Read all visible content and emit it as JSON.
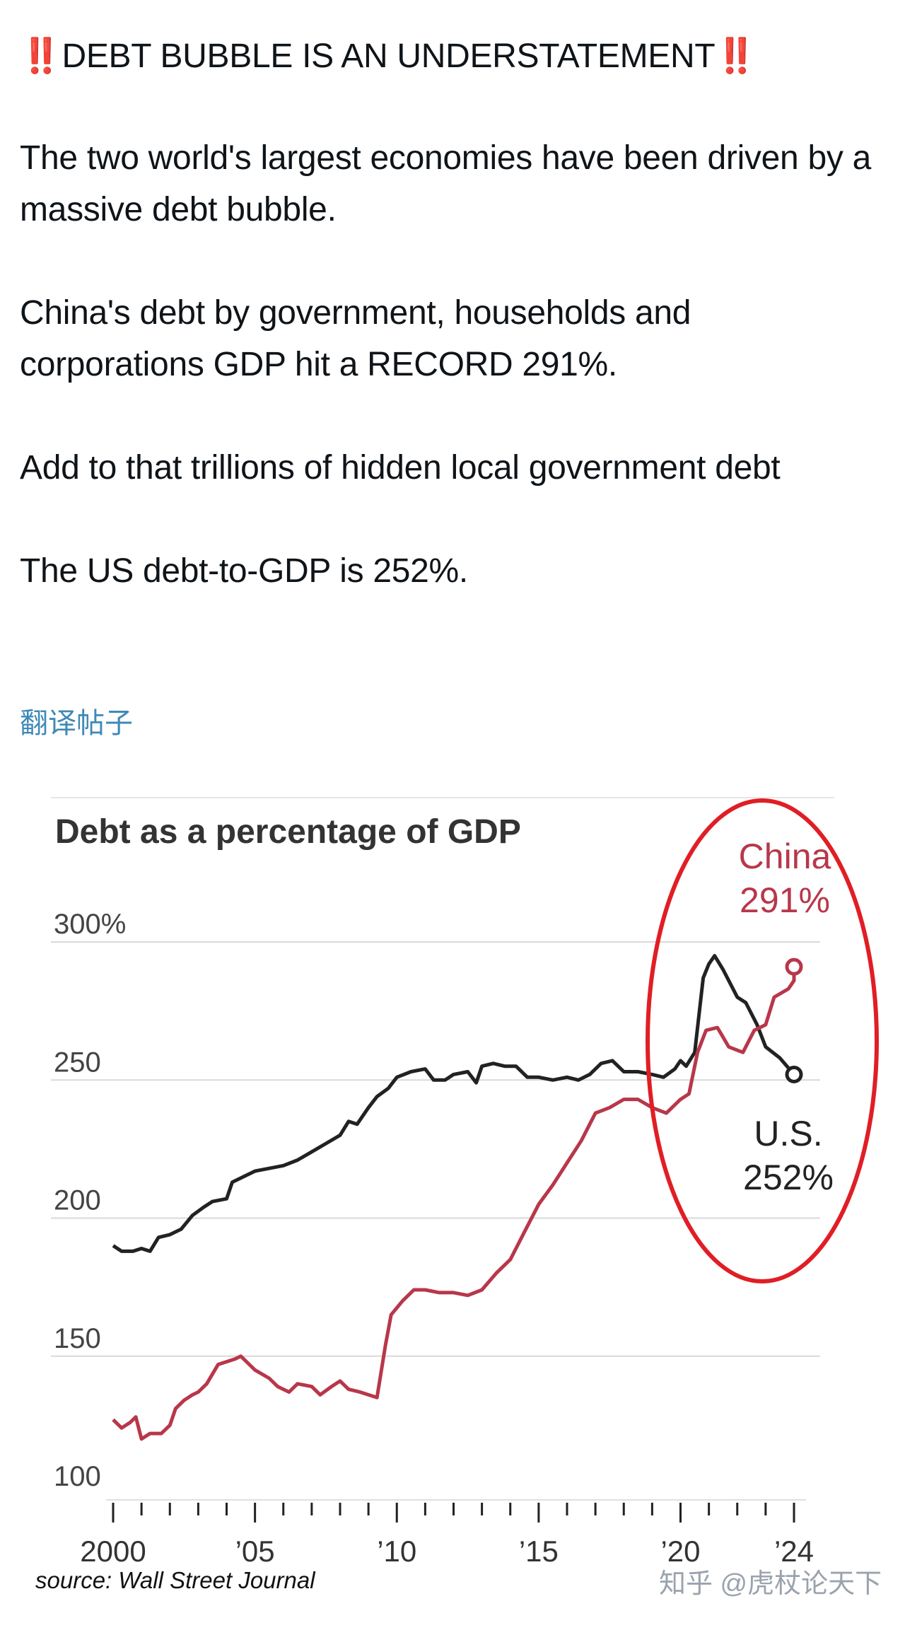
{
  "post": {
    "bang_left": "‼️",
    "headline": "DEBT BUBBLE IS AN UNDERSTATEMENT",
    "bang_right": "‼️",
    "p1": "The two world's largest economies have been driven by a massive debt bubble.",
    "p2": "China's debt by government, households and corporations GDP hit a RECORD 291%.",
    "p3": "Add to that trillions of hidden local government debt",
    "p4": "The US debt-to-GDP is 252%.",
    "translate_link": "翻译帖子"
  },
  "watermark": "知乎 @虎杖论天下",
  "colors": {
    "china": "#b8374a",
    "us": "#222222",
    "circle": "#e01e25",
    "grid": "#d9d9d9"
  },
  "chart_data": {
    "type": "line",
    "title": "Debt as a percentage of GDP",
    "source": "source: Wall Street Journal",
    "ylim": [
      100,
      300
    ],
    "xlim": [
      2000,
      2024.5
    ],
    "y_ticks": [
      {
        "v": 100,
        "label": "100"
      },
      {
        "v": 150,
        "label": "150"
      },
      {
        "v": 200,
        "label": "200"
      },
      {
        "v": 250,
        "label": "250"
      },
      {
        "v": 300,
        "label": "300%"
      }
    ],
    "x_ticks": [
      {
        "v": 2000,
        "label": "2000"
      },
      {
        "v": 2005,
        "label": "’05"
      },
      {
        "v": 2010,
        "label": "’10"
      },
      {
        "v": 2015,
        "label": "’15"
      },
      {
        "v": 2020,
        "label": "’20"
      },
      {
        "v": 2024,
        "label": "’24"
      }
    ],
    "series": [
      {
        "name": "U.S.",
        "label_line1": "U.S.",
        "label_line2": "252%",
        "end_value": 252,
        "points": [
          [
            2000.0,
            190
          ],
          [
            2000.3,
            188
          ],
          [
            2000.7,
            188
          ],
          [
            2001.0,
            189
          ],
          [
            2001.3,
            188
          ],
          [
            2001.6,
            193
          ],
          [
            2002.0,
            194
          ],
          [
            2002.4,
            196
          ],
          [
            2002.8,
            201
          ],
          [
            2003.2,
            204
          ],
          [
            2003.5,
            206
          ],
          [
            2004.0,
            207
          ],
          [
            2004.2,
            213
          ],
          [
            2004.6,
            215
          ],
          [
            2005.0,
            217
          ],
          [
            2005.5,
            218
          ],
          [
            2006.0,
            219
          ],
          [
            2006.5,
            221
          ],
          [
            2007.0,
            224
          ],
          [
            2007.5,
            227
          ],
          [
            2008.0,
            230
          ],
          [
            2008.3,
            235
          ],
          [
            2008.6,
            234
          ],
          [
            2009.0,
            240
          ],
          [
            2009.3,
            244
          ],
          [
            2009.7,
            247
          ],
          [
            2010.0,
            251
          ],
          [
            2010.5,
            253
          ],
          [
            2011.0,
            254
          ],
          [
            2011.3,
            250
          ],
          [
            2011.7,
            250
          ],
          [
            2012.0,
            252
          ],
          [
            2012.5,
            253
          ],
          [
            2012.8,
            249
          ],
          [
            2013.0,
            255
          ],
          [
            2013.4,
            256
          ],
          [
            2013.8,
            255
          ],
          [
            2014.2,
            255
          ],
          [
            2014.6,
            251
          ],
          [
            2015.0,
            251
          ],
          [
            2015.5,
            250
          ],
          [
            2016.0,
            251
          ],
          [
            2016.4,
            250
          ],
          [
            2016.8,
            252
          ],
          [
            2017.2,
            256
          ],
          [
            2017.6,
            257
          ],
          [
            2018.0,
            253
          ],
          [
            2018.5,
            253
          ],
          [
            2019.0,
            252
          ],
          [
            2019.4,
            251
          ],
          [
            2019.8,
            254
          ],
          [
            2020.0,
            257
          ],
          [
            2020.2,
            255
          ],
          [
            2020.5,
            260
          ],
          [
            2020.8,
            287
          ],
          [
            2021.0,
            292
          ],
          [
            2021.2,
            295
          ],
          [
            2021.5,
            290
          ],
          [
            2022.0,
            280
          ],
          [
            2022.3,
            278
          ],
          [
            2022.7,
            270
          ],
          [
            2023.0,
            262
          ],
          [
            2023.5,
            258
          ],
          [
            2024.0,
            252
          ],
          [
            2024.0,
            252
          ]
        ]
      },
      {
        "name": "China",
        "label_line1": "China",
        "label_line2": "291%",
        "end_value": 291,
        "points": [
          [
            2000.0,
            127
          ],
          [
            2000.3,
            124
          ],
          [
            2000.6,
            126
          ],
          [
            2000.8,
            128
          ],
          [
            2001.0,
            120
          ],
          [
            2001.3,
            122
          ],
          [
            2001.7,
            122
          ],
          [
            2002.0,
            125
          ],
          [
            2002.2,
            131
          ],
          [
            2002.5,
            134
          ],
          [
            2002.8,
            136
          ],
          [
            2003.0,
            137
          ],
          [
            2003.3,
            140
          ],
          [
            2003.7,
            147
          ],
          [
            2004.0,
            148
          ],
          [
            2004.3,
            149
          ],
          [
            2004.5,
            150
          ],
          [
            2004.8,
            147
          ],
          [
            2005.0,
            145
          ],
          [
            2005.5,
            142
          ],
          [
            2005.8,
            139
          ],
          [
            2006.2,
            137
          ],
          [
            2006.5,
            140
          ],
          [
            2007.0,
            139
          ],
          [
            2007.3,
            136
          ],
          [
            2007.7,
            139
          ],
          [
            2008.0,
            141
          ],
          [
            2008.3,
            138
          ],
          [
            2008.7,
            137
          ],
          [
            2009.0,
            136
          ],
          [
            2009.3,
            135
          ],
          [
            2009.6,
            154
          ],
          [
            2009.8,
            165
          ],
          [
            2010.2,
            170
          ],
          [
            2010.6,
            174
          ],
          [
            2011.0,
            174
          ],
          [
            2011.5,
            173
          ],
          [
            2012.0,
            173
          ],
          [
            2012.5,
            172
          ],
          [
            2013.0,
            174
          ],
          [
            2013.5,
            180
          ],
          [
            2014.0,
            185
          ],
          [
            2014.5,
            195
          ],
          [
            2015.0,
            205
          ],
          [
            2015.5,
            212
          ],
          [
            2016.0,
            220
          ],
          [
            2016.5,
            228
          ],
          [
            2017.0,
            238
          ],
          [
            2017.5,
            240
          ],
          [
            2018.0,
            243
          ],
          [
            2018.5,
            243
          ],
          [
            2019.0,
            240
          ],
          [
            2019.5,
            238
          ],
          [
            2020.0,
            243
          ],
          [
            2020.3,
            245
          ],
          [
            2020.6,
            260
          ],
          [
            2020.9,
            268
          ],
          [
            2021.3,
            269
          ],
          [
            2021.7,
            262
          ],
          [
            2022.2,
            260
          ],
          [
            2022.6,
            268
          ],
          [
            2023.0,
            270
          ],
          [
            2023.3,
            280
          ],
          [
            2023.8,
            283
          ],
          [
            2024.0,
            286
          ],
          [
            2024.0,
            291
          ]
        ]
      }
    ],
    "annotation": {
      "type": "circle-highlight",
      "around": "2020-2024 region",
      "color": "#e01e25"
    }
  }
}
